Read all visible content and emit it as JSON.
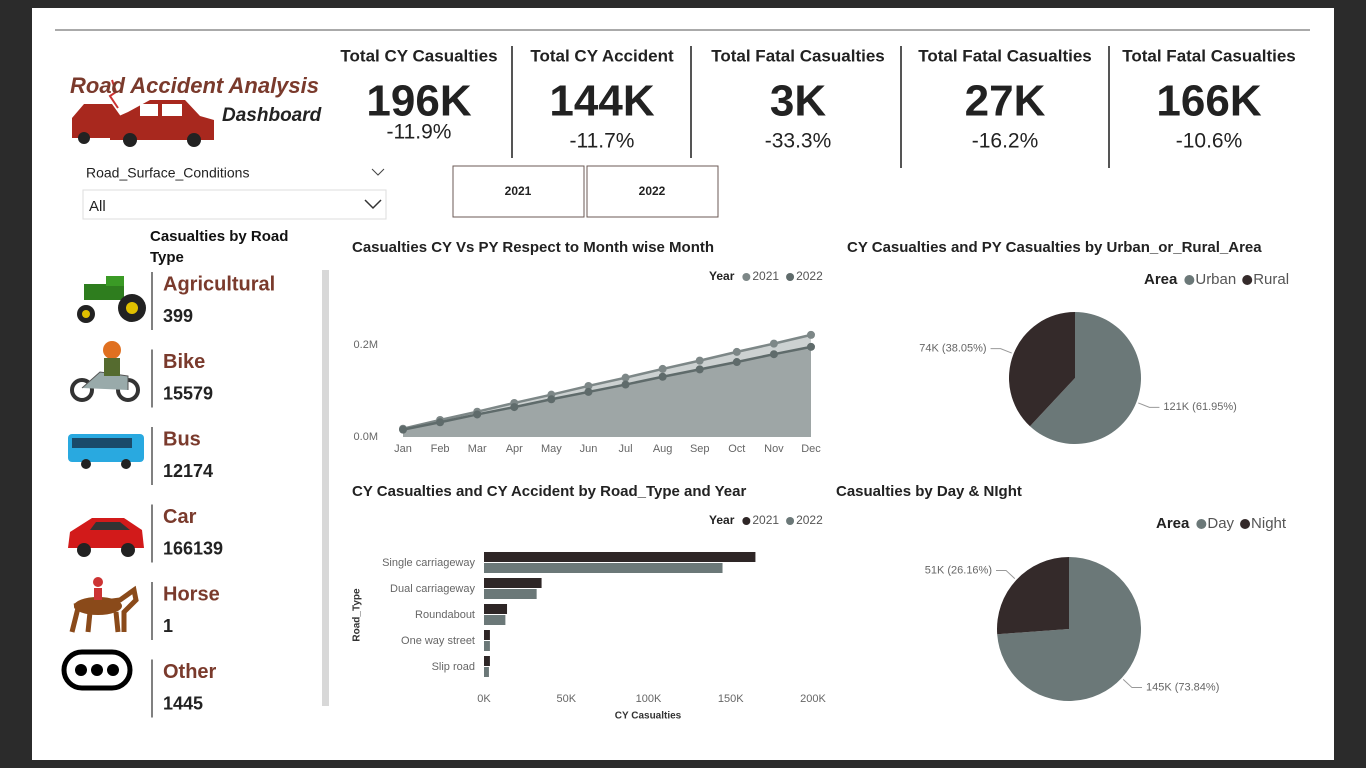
{
  "header": {
    "title": "Road Accident Analysis",
    "subtitle": "Dashboard"
  },
  "kpis": [
    {
      "title": "Total CY Casualties",
      "value": "196K",
      "change": "-11.9%"
    },
    {
      "title": "Total CY Accident",
      "value": "144K",
      "change": "-11.7%"
    },
    {
      "title": "Total Fatal Casualties",
      "value": "3K",
      "change": "-33.3%"
    },
    {
      "title": "Total Fatal Casualties",
      "value": "27K",
      "change": "-16.2%"
    },
    {
      "title": "Total Fatal Casualties",
      "value": "166K",
      "change": "-10.6%"
    }
  ],
  "filter": {
    "label": "Road_Surface_Conditions",
    "selected": "All"
  },
  "year_buttons": [
    "2021",
    "2022"
  ],
  "road_types": {
    "title": "Casualties by Road Type",
    "items": [
      {
        "name": "Agricultural",
        "value": 399
      },
      {
        "name": "Bike",
        "value": 15579
      },
      {
        "name": "Bus",
        "value": 12174
      },
      {
        "name": "Car",
        "value": 166139
      },
      {
        "name": "Horse",
        "value": 1
      },
      {
        "name": "Other",
        "value": 1445
      }
    ]
  },
  "chart_data": [
    {
      "type": "line",
      "title": "Casualties CY Vs PY Respect to Month wise Month",
      "legend_title": "Year",
      "categories": [
        "Jan",
        "Feb",
        "Mar",
        "Apr",
        "May",
        "Jun",
        "Jul",
        "Aug",
        "Sep",
        "Oct",
        "Nov",
        "Dec"
      ],
      "series": [
        {
          "name": "2021",
          "color": "#7d8787",
          "values": [
            18000,
            37000,
            55000,
            74000,
            92000,
            111000,
            129000,
            148000,
            166000,
            185000,
            203000,
            222000
          ]
        },
        {
          "name": "2022",
          "color": "#5f6b6b",
          "values": [
            16000,
            32000,
            49000,
            65000,
            82000,
            98000,
            114000,
            131000,
            147000,
            163000,
            180000,
            196000
          ]
        }
      ],
      "ylim": [
        0,
        250000
      ],
      "yticks": [
        {
          "value": 0,
          "label": "0.0M"
        },
        {
          "value": 200000,
          "label": "0.2M"
        }
      ]
    },
    {
      "type": "pie",
      "title": "CY Casualties and PY Casualties by Urban_or_Rural_Area",
      "legend_title": "Area",
      "categories": [
        "Urban",
        "Rural"
      ],
      "values": [
        61.95,
        38.05
      ],
      "value_labels": [
        "121K (61.95%)",
        "74K (38.05%)"
      ],
      "colors": [
        "#6b7878",
        "#342a2a"
      ]
    },
    {
      "type": "bar",
      "orientation": "horizontal",
      "title": "CY Casualties and CY Accident by Road_Type and Year",
      "legend_title": "Year",
      "x_label": "CY Casualties",
      "y_label": "Road_Type",
      "categories": [
        "Single carriageway",
        "Dual carriageway",
        "Roundabout",
        "One way street",
        "Slip road"
      ],
      "series": [
        {
          "name": "2021",
          "color": "#2e2626",
          "values": [
            165000,
            35000,
            14000,
            3600,
            3600
          ]
        },
        {
          "name": "2022",
          "color": "#6b7878",
          "values": [
            145000,
            32000,
            13000,
            3600,
            3000
          ]
        }
      ],
      "xlim": [
        0,
        200000
      ],
      "xticks": [
        {
          "value": 0,
          "label": "0K"
        },
        {
          "value": 50000,
          "label": "50K"
        },
        {
          "value": 100000,
          "label": "100K"
        },
        {
          "value": 150000,
          "label": "150K"
        },
        {
          "value": 200000,
          "label": "200K"
        }
      ]
    },
    {
      "type": "pie",
      "title": "Casualties by Day & NIght",
      "legend_title": "Area",
      "categories": [
        "Day",
        "Night"
      ],
      "values": [
        73.84,
        26.16
      ],
      "value_labels": [
        "145K (73.84%)",
        "51K (26.16%)"
      ],
      "colors": [
        "#6b7878",
        "#342a2a"
      ]
    }
  ]
}
